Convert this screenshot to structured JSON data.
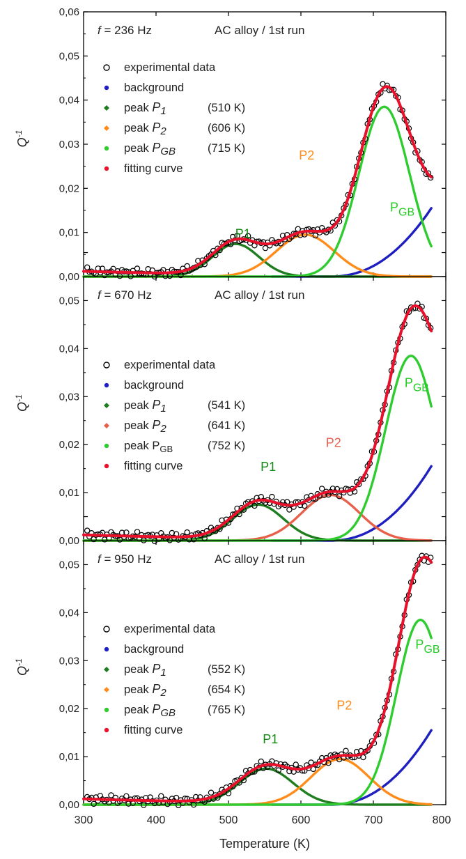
{
  "figure": {
    "xlabel": "Temperature (K)",
    "ylabel_base": "Q",
    "ylabel_exp": "-1",
    "x_ticks": [
      "300",
      "400",
      "500",
      "600",
      "700",
      "800"
    ],
    "y_ticks": [
      "0,00",
      "0,01",
      "0,02",
      "0,03",
      "0,04",
      "0,05",
      "0,06"
    ]
  },
  "colors": {
    "experimental": "#000000",
    "background": "#1f1fbf",
    "p1": "#1e7d1e",
    "p2_orange": "#ff8c1a",
    "p2_salmon": "#e8604c",
    "pgb": "#2ecc2e",
    "fit": "#e8102a",
    "label_p1": "#138a13",
    "label_p2_orange": "#ff8c1a",
    "label_p2_salmon": "#e8604c",
    "label_pgb": "#22cc22"
  },
  "chart_data": [
    {
      "type": "scatter",
      "title_f": "f",
      "title_rest": " = 236 Hz",
      "title_alloy": "AC alloy / 1st run",
      "xlim": [
        300,
        800
      ],
      "ylim": [
        0,
        0.06
      ],
      "legend_placement": "top-left",
      "legend": [
        {
          "key": "experimental",
          "label": "experimental data",
          "temp": ""
        },
        {
          "key": "background",
          "label": "background",
          "temp": ""
        },
        {
          "key": "p1",
          "label": "peak ",
          "italic": "P1",
          "temp": "(510 K)"
        },
        {
          "key": "p2",
          "label": "peak ",
          "italic": "P2",
          "temp": "(606 K)"
        },
        {
          "key": "pgb",
          "label": "peak ",
          "italic": "PGB",
          "temp": "(715 K)"
        },
        {
          "key": "fit",
          "label": "fitting curve",
          "temp": ""
        }
      ],
      "annotations": [
        {
          "text": "P1",
          "sub": "",
          "x": 520,
          "y": 0.0088,
          "color": "label_p1"
        },
        {
          "text": "P2",
          "sub": "",
          "x": 608,
          "y": 0.0265,
          "color": "label_p2_orange"
        },
        {
          "text": "P",
          "sub": "GB",
          "x": 740,
          "y": 0.0148,
          "color": "label_pgb"
        }
      ],
      "peaks": {
        "p1": {
          "center": 510,
          "height": 0.0074,
          "width": 32
        },
        "p2": {
          "center": 606,
          "height": 0.0095,
          "width": 40
        },
        "pgb": {
          "center": 715,
          "height": 0.0385,
          "width": 35
        }
      },
      "background": {
        "scale": 0.0155,
        "start": 640
      },
      "p2_color": "p2_orange",
      "exp_offset": 0.0012
    },
    {
      "type": "scatter",
      "title_f": "f",
      "title_rest": " = 670 Hz",
      "title_alloy": "AC alloy / 1st run",
      "xlim": [
        300,
        800
      ],
      "ylim": [
        0,
        0.055
      ],
      "legend_placement": "middle-left",
      "legend": [
        {
          "key": "experimental",
          "label": "experimental data",
          "temp": ""
        },
        {
          "key": "background",
          "label": "background",
          "temp": ""
        },
        {
          "key": "p1",
          "label": "peak ",
          "italic": "P1",
          "temp": "(541 K)"
        },
        {
          "key": "p2",
          "label": "peak ",
          "italic": "P2",
          "temp": "(641 K)"
        },
        {
          "key": "pgb",
          "label": "peak ",
          "italic": "",
          "plain_sub": "PGB",
          "temp": "(752 K)"
        },
        {
          "key": "fit",
          "label": "fitting curve",
          "temp": ""
        }
      ],
      "annotations": [
        {
          "text": "P1",
          "sub": "",
          "x": 555,
          "y": 0.0145,
          "color": "label_p1"
        },
        {
          "text": "P2",
          "sub": "",
          "x": 645,
          "y": 0.0195,
          "color": "label_p2_salmon"
        },
        {
          "text": "P",
          "sub": "GB",
          "x": 760,
          "y": 0.032,
          "color": "label_pgb"
        }
      ],
      "peaks": {
        "p1": {
          "center": 541,
          "height": 0.0075,
          "width": 35
        },
        "p2": {
          "center": 641,
          "height": 0.0095,
          "width": 40
        },
        "pgb": {
          "center": 752,
          "height": 0.0385,
          "width": 35
        }
      },
      "background": {
        "scale": 0.0155,
        "start": 640
      },
      "p2_color": "p2_salmon",
      "exp_offset": 0.0012
    },
    {
      "type": "scatter",
      "title_f": "f",
      "title_rest": " = 950 Hz",
      "title_alloy": "AC alloy / 1st run",
      "xlim": [
        300,
        800
      ],
      "ylim": [
        0,
        0.055
      ],
      "legend_placement": "middle-left",
      "legend": [
        {
          "key": "experimental",
          "label": "experimental data",
          "temp": ""
        },
        {
          "key": "background",
          "label": "background",
          "temp": ""
        },
        {
          "key": "p1",
          "label": "peak ",
          "italic": "P1",
          "temp": "(552 K)"
        },
        {
          "key": "p2",
          "label": "peak ",
          "italic": "P2",
          "temp": "(654 K)"
        },
        {
          "key": "pgb",
          "label": "peak ",
          "italic": "PGB",
          "temp": "(765 K)"
        },
        {
          "key": "fit",
          "label": "fitting curve",
          "temp": ""
        }
      ],
      "annotations": [
        {
          "text": "P1",
          "sub": "",
          "x": 558,
          "y": 0.0128,
          "color": "label_p1"
        },
        {
          "text": "P2",
          "sub": "",
          "x": 660,
          "y": 0.0198,
          "color": "label_p2_orange"
        },
        {
          "text": "P",
          "sub": "GB",
          "x": 775,
          "y": 0.0325,
          "color": "label_pgb"
        }
      ],
      "peaks": {
        "p1": {
          "center": 552,
          "height": 0.0075,
          "width": 37
        },
        "p2": {
          "center": 654,
          "height": 0.0095,
          "width": 40
        },
        "pgb": {
          "center": 765,
          "height": 0.0385,
          "width": 33
        }
      },
      "background": {
        "scale": 0.0155,
        "start": 640
      },
      "p2_color": "p2_orange",
      "exp_offset": 0.0012
    }
  ]
}
